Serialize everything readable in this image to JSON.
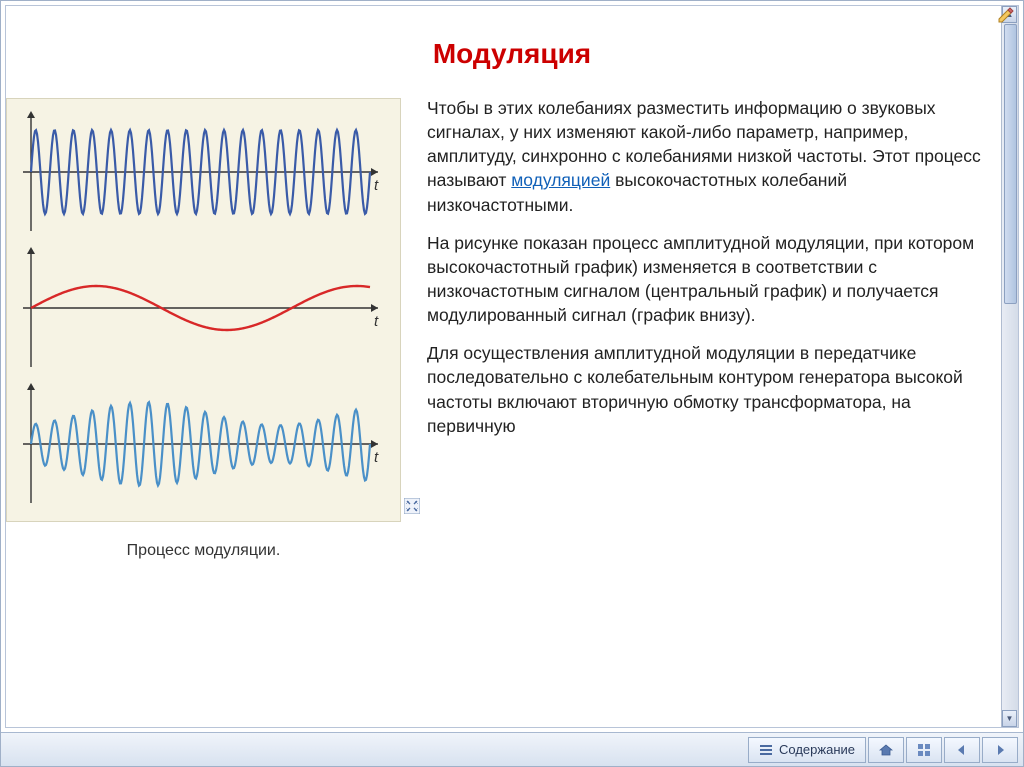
{
  "title": "Модуляция",
  "figure": {
    "caption": "Процесс модуляции.",
    "background_color": "#f6f3e4",
    "axis_label": "t",
    "signals": [
      {
        "name": "carrier",
        "color": "#3a5ba8",
        "stroke_width": 2.2,
        "type": "sine",
        "frequency": 18,
        "amplitude": 42,
        "envelope": null
      },
      {
        "name": "message",
        "color": "#d82828",
        "stroke_width": 2.4,
        "type": "sine",
        "frequency": 1.3,
        "amplitude": 22,
        "envelope": null
      },
      {
        "name": "modulated",
        "color": "#4a90c8",
        "stroke_width": 2.2,
        "type": "sine",
        "frequency": 18,
        "amplitude": 42,
        "envelope": {
          "frequency": 1.3,
          "depth": 0.55
        }
      }
    ]
  },
  "paragraphs": {
    "p1_pre": "Чтобы в этих колебаниях разместить информацию о звуковых сигналах, у них изменяют какой-либо параметр, например, амплитуду, синхронно с колебаниями низкой частоты. Этот процесс называют ",
    "p1_link": "модуляцией",
    "p1_post": " высокочастотных колебаний низкочастотными.",
    "p2": "На рисунке показан процесс амплитудной модуляции, при котором  высокочастотный график) изменяется в соответствии с низкочастотным сигналом (центральный график) и получается модулированный сигнал (график внизу).",
    "p3": "Для осуществления амплитудной модуляции в передатчике последовательно с колебательным контуром генератора высокой частоты включают вторичную обмотку трансформатора, на первичную"
  },
  "statusbar": {
    "contents_label": "Содержание",
    "buttons": [
      "home-icon",
      "table-icon",
      "back-icon",
      "forward-icon"
    ]
  },
  "colors": {
    "title_color": "#cc0000",
    "link_color": "#1060b8",
    "statusbar_bg_top": "#f0f4fa",
    "statusbar_bg_bottom": "#d8e2f0",
    "page_border": "#a0b0c8"
  },
  "typography": {
    "title_fontsize": 28,
    "body_fontsize": 17.5,
    "caption_fontsize": 16,
    "font_family": "Arial"
  }
}
